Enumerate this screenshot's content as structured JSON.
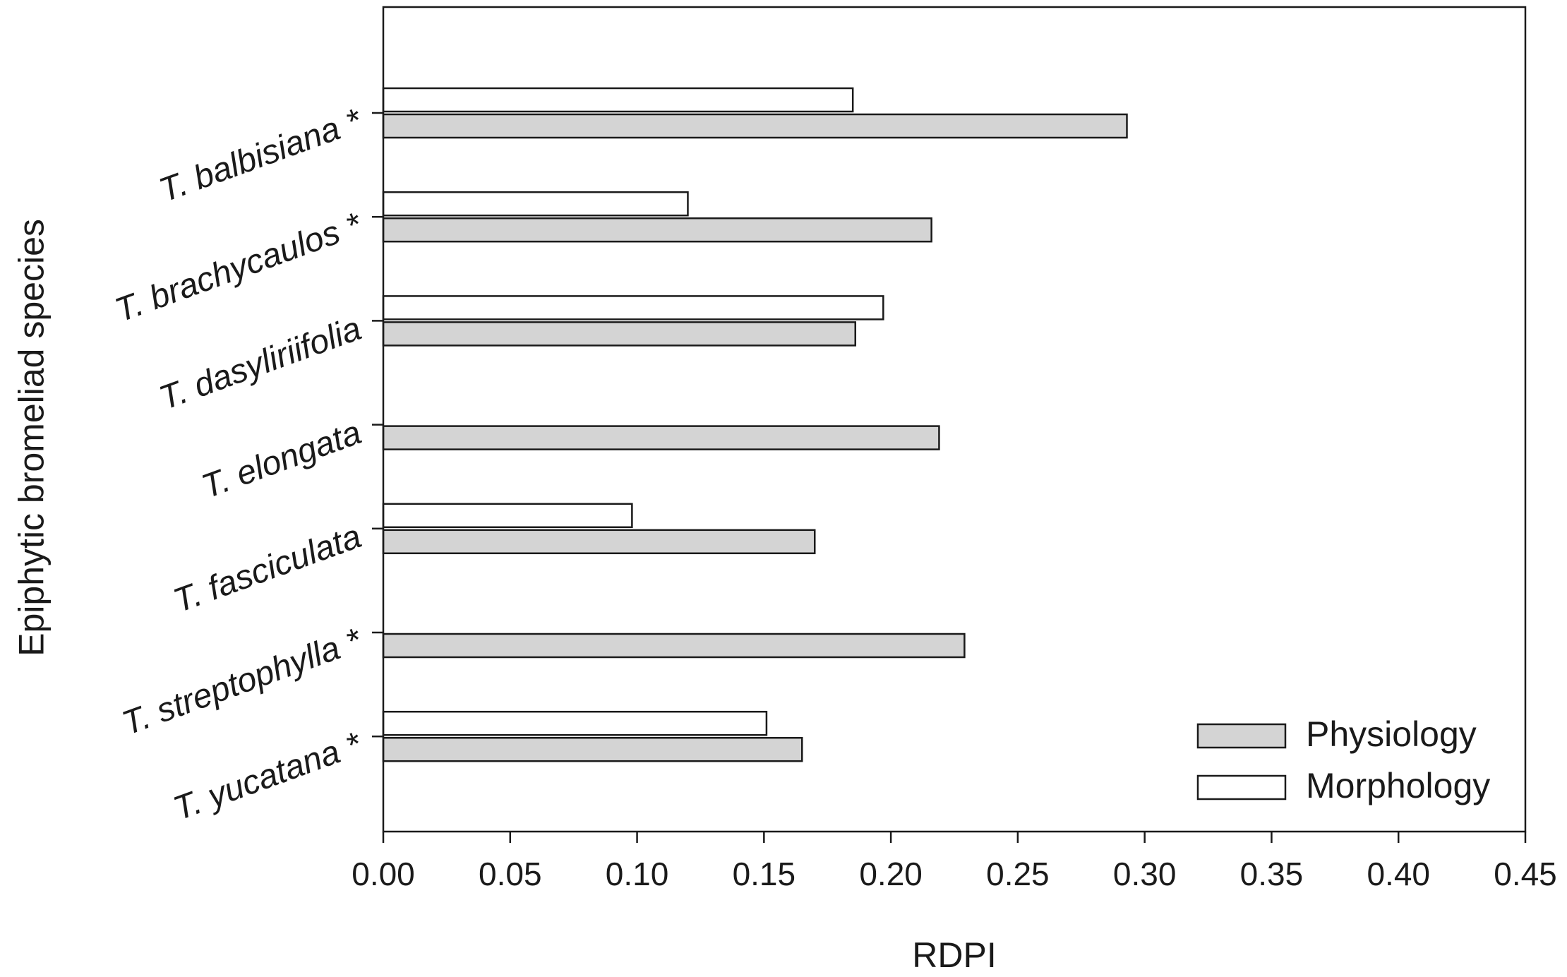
{
  "chart_data": {
    "type": "bar",
    "orientation": "horizontal",
    "categories": [
      "T. balbisiana *",
      "T. brachycaulos *",
      "T. dasyliriifolia",
      "T. elongata",
      "T. fasciculata",
      "T. streptophylla *",
      "T. yucatana *"
    ],
    "series": [
      {
        "name": "Physiology",
        "color": "#d4d4d4",
        "values": [
          0.293,
          0.216,
          0.186,
          0.219,
          0.17,
          0.229,
          0.165
        ]
      },
      {
        "name": "Morphology",
        "color": "#ffffff",
        "values": [
          0.185,
          0.12,
          0.197,
          null,
          0.098,
          null,
          0.151
        ]
      }
    ],
    "xlabel": "RDPI",
    "ylabel": "Epiphytic bromeliad species",
    "xlim": [
      0,
      0.45
    ],
    "xticks": [
      "0.00",
      "0.05",
      "0.10",
      "0.15",
      "0.20",
      "0.25",
      "0.30",
      "0.35",
      "0.40",
      "0.45"
    ],
    "grid": false,
    "legend_position": "bottom-right"
  }
}
